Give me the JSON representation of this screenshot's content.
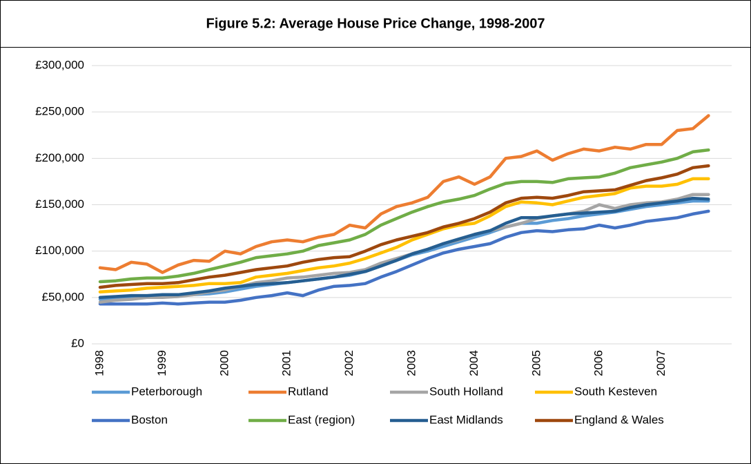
{
  "chart_data": {
    "type": "line",
    "title": "Figure 5.2: Average House Price Change, 1998-2007",
    "categories": [
      "1998",
      null,
      null,
      null,
      "1999",
      null,
      null,
      null,
      "2000",
      null,
      null,
      null,
      "2001",
      null,
      null,
      null,
      "2002",
      null,
      null,
      null,
      "2003",
      null,
      null,
      null,
      "2004",
      null,
      null,
      null,
      "2005",
      null,
      null,
      null,
      "2006",
      null,
      null,
      null,
      "2007",
      null,
      null,
      null
    ],
    "ylim": [
      0,
      300000
    ],
    "yticks": [
      {
        "value": 0,
        "label": "£0"
      },
      {
        "value": 50000,
        "label": "£50,000"
      },
      {
        "value": 100000,
        "label": "£100,000"
      },
      {
        "value": 150000,
        "label": "£150,000"
      },
      {
        "value": 200000,
        "label": "£200,000"
      },
      {
        "value": 250000,
        "label": "£250,000"
      },
      {
        "value": 300000,
        "label": "£300,000"
      }
    ],
    "grid": true,
    "series": [
      {
        "name": "Peterborough",
        "color": "#5b9bd5",
        "values": [
          48000,
          49000,
          50000,
          50000,
          51000,
          52000,
          53000,
          54000,
          56000,
          59000,
          62000,
          64000,
          66000,
          68000,
          70000,
          72000,
          74000,
          78000,
          84000,
          90000,
          96000,
          100000,
          105000,
          110000,
          115000,
          120000,
          126000,
          130000,
          130000,
          133000,
          135000,
          138000,
          140000,
          142000,
          145000,
          148000,
          150000,
          152000,
          154000,
          154000
        ]
      },
      {
        "name": "Rutland",
        "color": "#ed7d31",
        "values": [
          82000,
          80000,
          88000,
          86000,
          77000,
          85000,
          90000,
          89000,
          100000,
          97000,
          105000,
          110000,
          112000,
          110000,
          115000,
          118000,
          128000,
          125000,
          140000,
          148000,
          152000,
          158000,
          175000,
          180000,
          172000,
          180000,
          200000,
          202000,
          208000,
          198000,
          205000,
          210000,
          208000,
          212000,
          210000,
          215000,
          215000,
          230000,
          232000,
          246000
        ]
      },
      {
        "name": "South Holland",
        "color": "#a5a5a5",
        "values": [
          45000,
          47000,
          48000,
          50000,
          50000,
          51000,
          53000,
          56000,
          58000,
          62000,
          66000,
          68000,
          71000,
          72000,
          74000,
          76000,
          77000,
          80000,
          87000,
          92000,
          97000,
          102000,
          108000,
          112000,
          118000,
          122000,
          126000,
          130000,
          135000,
          138000,
          140000,
          143000,
          150000,
          146000,
          150000,
          152000,
          153000,
          156000,
          161000,
          161000
        ]
      },
      {
        "name": "South Kesteven",
        "color": "#ffc000",
        "values": [
          56000,
          57000,
          58000,
          60000,
          61000,
          62000,
          63000,
          65000,
          65000,
          66000,
          72000,
          74000,
          76000,
          79000,
          82000,
          84000,
          87000,
          92000,
          98000,
          104000,
          112000,
          118000,
          124000,
          128000,
          130000,
          138000,
          148000,
          153000,
          152000,
          150000,
          154000,
          158000,
          160000,
          162000,
          168000,
          170000,
          170000,
          172000,
          178000,
          178000
        ]
      },
      {
        "name": "Boston",
        "color": "#4472c4",
        "values": [
          43000,
          43000,
          43000,
          43000,
          44000,
          43000,
          44000,
          45000,
          45000,
          47000,
          50000,
          52000,
          55000,
          52000,
          58000,
          62000,
          63000,
          65000,
          72000,
          78000,
          85000,
          92000,
          98000,
          102000,
          105000,
          108000,
          115000,
          120000,
          122000,
          121000,
          123000,
          124000,
          128000,
          125000,
          128000,
          132000,
          134000,
          136000,
          140000,
          143000
        ]
      },
      {
        "name": "East (region)",
        "color": "#70ad47",
        "values": [
          67000,
          68000,
          70000,
          71000,
          71000,
          73000,
          76000,
          80000,
          84000,
          88000,
          93000,
          95000,
          97000,
          100000,
          106000,
          109000,
          112000,
          118000,
          128000,
          135000,
          142000,
          148000,
          153000,
          156000,
          160000,
          167000,
          173000,
          175000,
          175000,
          174000,
          178000,
          179000,
          180000,
          184000,
          190000,
          193000,
          196000,
          200000,
          207000,
          209000
        ]
      },
      {
        "name": "East Midlands",
        "color": "#255e91",
        "values": [
          50000,
          51000,
          52000,
          52000,
          53000,
          53000,
          55000,
          57000,
          60000,
          62000,
          64000,
          65000,
          66000,
          68000,
          70000,
          72000,
          75000,
          78000,
          84000,
          90000,
          97000,
          102000,
          108000,
          113000,
          118000,
          122000,
          130000,
          136000,
          136000,
          138000,
          140000,
          141000,
          142000,
          143000,
          147000,
          150000,
          152000,
          154000,
          157000,
          156000
        ]
      },
      {
        "name": "England & Wales",
        "color": "#9e480e",
        "values": [
          61000,
          63000,
          64000,
          65000,
          65000,
          66000,
          69000,
          72000,
          74000,
          77000,
          80000,
          82000,
          84000,
          88000,
          91000,
          93000,
          94000,
          100000,
          107000,
          112000,
          116000,
          120000,
          126000,
          130000,
          135000,
          142000,
          152000,
          157000,
          158000,
          157000,
          160000,
          164000,
          165000,
          166000,
          171000,
          176000,
          179000,
          183000,
          190000,
          192000
        ]
      }
    ]
  }
}
